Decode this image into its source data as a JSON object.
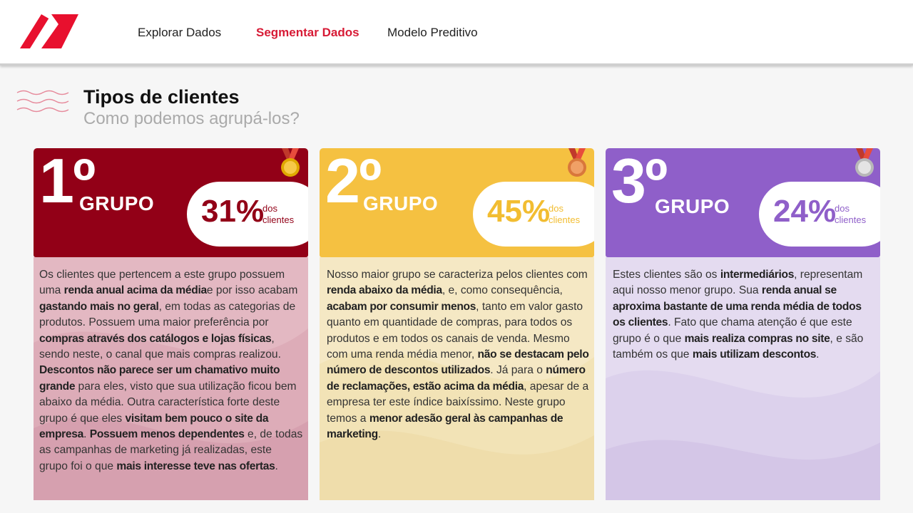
{
  "nav": {
    "items": [
      "Explorar Dados",
      "Segmentar Dados",
      "Modelo Preditivo"
    ],
    "active_index": 1
  },
  "header": {
    "title": "Tipos de clientes",
    "subtitle": "Como podemos agrupá-los?"
  },
  "colors": {
    "accent": "#d71a35",
    "group1": "#920017",
    "group2": "#f5c141",
    "group3": "#8f5fc9"
  },
  "groups": [
    {
      "rank": "1º",
      "label": "GRUPO",
      "percent": "31%",
      "percent_note_1": "dos",
      "percent_note_2": "clientes",
      "medal": "gold-medal-icon",
      "description": [
        {
          "t": "Os clientes que pertencem a este grupo possuem uma "
        },
        {
          "t": "renda anual acima da média",
          "b": true
        },
        {
          "t": "e por isso acabam "
        },
        {
          "t": "gastando mais no geral",
          "b": true
        },
        {
          "t": ", em todas as categorias de produtos. Possuem uma maior preferência por "
        },
        {
          "t": "compras através dos catálogos e lojas físicas",
          "b": true
        },
        {
          "t": ", sendo neste, o canal que mais compras realizou. "
        },
        {
          "t": "Descontos não parece ser um chamativo muito grande",
          "b": true
        },
        {
          "t": " para eles, visto que sua utilização ficou bem abaixo da média. Outra característica forte deste grupo é que eles "
        },
        {
          "t": "visitam bem pouco o site da empresa",
          "b": true
        },
        {
          "t": ". "
        },
        {
          "t": "Possuem menos dependentes",
          "b": true
        },
        {
          "t": " e, de todas as campanhas de marketing já realizadas, este grupo foi o que "
        },
        {
          "t": "mais interesse teve nas ofertas",
          "b": true
        },
        {
          "t": "."
        }
      ]
    },
    {
      "rank": "2º",
      "label": "GRUPO",
      "percent": "45%",
      "percent_note_1": "dos",
      "percent_note_2": "clientes",
      "medal": "bronze-medal-icon",
      "description": [
        {
          "t": "Nosso maior grupo se caracteriza pelos clientes com "
        },
        {
          "t": "renda abaixo da média",
          "b": true
        },
        {
          "t": ", e, como consequência, "
        },
        {
          "t": "acabam por consumir menos",
          "b": true
        },
        {
          "t": ", tanto em valor gasto quanto em quantidade de compras, para todos os produtos e em todos os canais de venda. Mesmo com uma renda média menor, "
        },
        {
          "t": "não se destacam pelo número de descontos utilizados",
          "b": true
        },
        {
          "t": ". Já para o "
        },
        {
          "t": "número de reclamações, estão acima da média",
          "b": true
        },
        {
          "t": ", apesar de a empresa ter este índice baixíssimo. Neste grupo temos a "
        },
        {
          "t": "menor adesão geral às campanhas de marketing",
          "b": true
        },
        {
          "t": "."
        }
      ]
    },
    {
      "rank": "3º",
      "label": "GRUPO",
      "percent": "24%",
      "percent_note_1": "dos",
      "percent_note_2": "clientes",
      "medal": "silver-medal-icon",
      "description": [
        {
          "t": "Estes clientes são os "
        },
        {
          "t": "intermediários",
          "b": true
        },
        {
          "t": ", representam aqui nosso menor grupo. Sua "
        },
        {
          "t": "renda anual se aproxima bastante de uma renda média de todos os clientes",
          "b": true
        },
        {
          "t": ". Fato que chama atenção é que este grupo é o que "
        },
        {
          "t": "mais realiza compras no site",
          "b": true
        },
        {
          "t": ", e são também os que "
        },
        {
          "t": "mais utilizam descontos",
          "b": true
        },
        {
          "t": "."
        }
      ]
    }
  ]
}
